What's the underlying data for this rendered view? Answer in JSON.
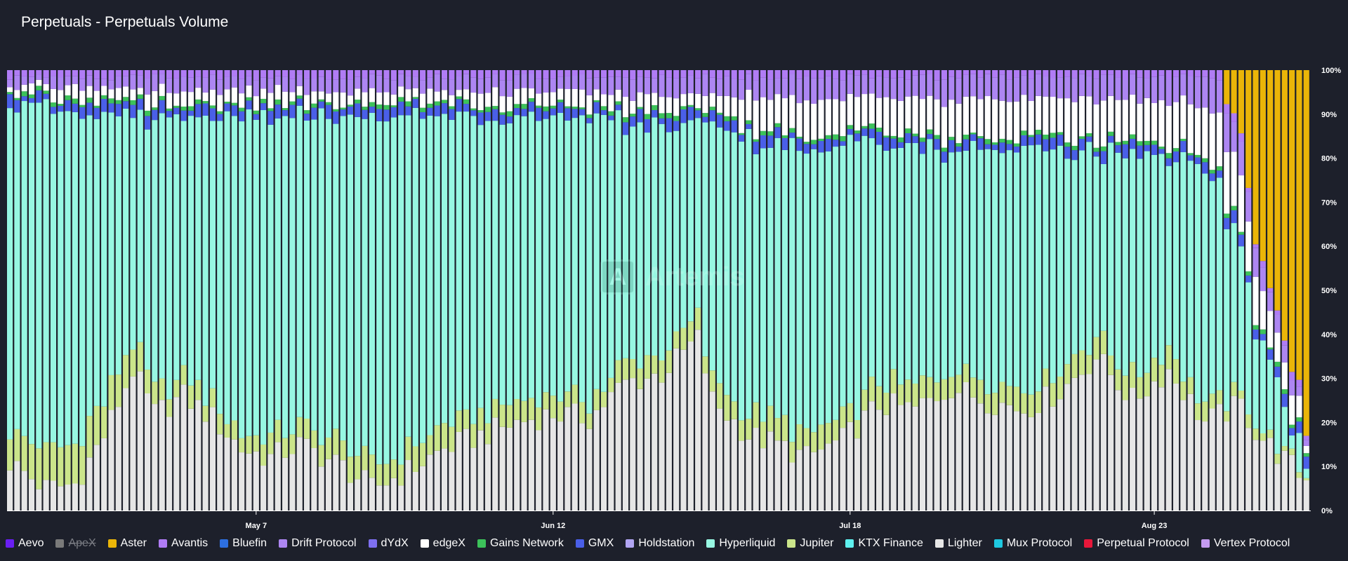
{
  "header": {
    "title": "Perpetuals - Perpetuals Volume"
  },
  "watermark": {
    "text": "Artemis"
  },
  "chart_data": {
    "type": "bar",
    "stacked": true,
    "normalized": true,
    "ylim": [
      0,
      100
    ],
    "y_ticks": [
      "0%",
      "10%",
      "20%",
      "30%",
      "40%",
      "50%",
      "60%",
      "70%",
      "80%",
      "90%",
      "100%"
    ],
    "x_ticks": [
      "May 7",
      "Jun 12",
      "Jul 18",
      "Aug 23"
    ],
    "x_start_date": "2025-04-04",
    "num_bars": 180,
    "grid": false,
    "legend_position": "bottom",
    "series": [
      {
        "name": "Aevo",
        "color": "#6a1ff2",
        "hidden": false
      },
      {
        "name": "ApeX",
        "color": "#7a7a7a",
        "hidden": true
      },
      {
        "name": "Aster",
        "color": "#eab508",
        "hidden": false
      },
      {
        "name": "Avantis",
        "color": "#b07cf5",
        "hidden": false
      },
      {
        "name": "Bluefin",
        "color": "#2d6fe0",
        "hidden": false
      },
      {
        "name": "Drift Protocol",
        "color": "#ad86f2",
        "hidden": false
      },
      {
        "name": "dYdX",
        "color": "#7e6ff0",
        "hidden": false
      },
      {
        "name": "edgeX",
        "color": "#ffffff",
        "hidden": false
      },
      {
        "name": "Gains Network",
        "color": "#3cc25a",
        "hidden": false
      },
      {
        "name": "GMX",
        "color": "#4a5fe8",
        "hidden": false
      },
      {
        "name": "Holdstation",
        "color": "#b1a5f3",
        "hidden": false
      },
      {
        "name": "Hyperliquid",
        "color": "#97f7e2",
        "hidden": false
      },
      {
        "name": "Jupiter",
        "color": "#cbe58a",
        "hidden": false
      },
      {
        "name": "KTX Finance",
        "color": "#5ef0ee",
        "hidden": false
      },
      {
        "name": "Lighter",
        "color": "#e6e6e6",
        "hidden": false
      },
      {
        "name": "Mux Protocol",
        "color": "#1ec8e0",
        "hidden": false
      },
      {
        "name": "Perpetual Protocol",
        "color": "#e8173a",
        "hidden": false
      },
      {
        "name": "Vertex Protocol",
        "color": "#c59bf2",
        "hidden": false
      }
    ],
    "profiles": {
      "lighter_pct": [
        [
          0,
          11
        ],
        [
          5,
          5
        ],
        [
          9,
          6
        ],
        [
          13,
          17
        ],
        [
          17,
          32
        ],
        [
          20,
          22
        ],
        [
          24,
          26
        ],
        [
          28,
          21
        ],
        [
          32,
          14
        ],
        [
          36,
          12
        ],
        [
          40,
          15
        ],
        [
          46,
          10
        ],
        [
          50,
          5
        ],
        [
          55,
          9
        ],
        [
          60,
          14
        ],
        [
          65,
          17
        ],
        [
          70,
          20
        ],
        [
          75,
          22
        ],
        [
          80,
          21
        ],
        [
          85,
          29
        ],
        [
          90,
          31
        ],
        [
          95,
          39
        ],
        [
          97,
          25
        ],
        [
          102,
          17
        ],
        [
          106,
          15
        ],
        [
          110,
          12
        ],
        [
          115,
          16
        ],
        [
          120,
          24
        ],
        [
          125,
          23
        ],
        [
          130,
          28
        ],
        [
          135,
          25
        ],
        [
          140,
          23
        ],
        [
          145,
          27
        ],
        [
          150,
          35
        ],
        [
          155,
          25
        ],
        [
          160,
          32
        ],
        [
          165,
          20
        ],
        [
          170,
          24
        ],
        [
          172,
          18
        ],
        [
          175,
          13
        ],
        [
          179,
          7
        ]
      ],
      "jupiter_pct": [
        [
          0,
          8
        ],
        [
          10,
          9
        ],
        [
          20,
          5
        ],
        [
          30,
          4
        ],
        [
          45,
          5
        ],
        [
          60,
          5
        ],
        [
          80,
          4
        ],
        [
          100,
          5
        ],
        [
          120,
          5
        ],
        [
          140,
          5
        ],
        [
          160,
          5
        ],
        [
          172,
          2
        ],
        [
          179,
          1
        ]
      ],
      "aster_start_index": 168,
      "aster_pct": [
        [
          168,
          9
        ],
        [
          170,
          13
        ],
        [
          172,
          40
        ],
        [
          174,
          48
        ],
        [
          176,
          62
        ],
        [
          178,
          72
        ],
        [
          179,
          84
        ]
      ],
      "gaps_top_pct": [
        [
          0,
          6
        ],
        [
          20,
          8
        ],
        [
          40,
          9
        ],
        [
          60,
          9
        ],
        [
          80,
          12
        ],
        [
          100,
          14
        ],
        [
          110,
          16
        ],
        [
          120,
          15
        ],
        [
          130,
          18
        ],
        [
          140,
          17
        ],
        [
          150,
          17
        ],
        [
          160,
          20
        ],
        [
          164,
          22
        ],
        [
          168,
          28
        ],
        [
          172,
          20
        ],
        [
          179,
          5
        ]
      ]
    }
  },
  "legend": [
    {
      "label": "Aevo"
    },
    {
      "label": "ApeX"
    },
    {
      "label": "Aster"
    },
    {
      "label": "Avantis"
    },
    {
      "label": "Bluefin"
    },
    {
      "label": "Drift Protocol"
    },
    {
      "label": "dYdX"
    },
    {
      "label": "edgeX"
    },
    {
      "label": "Gains Network"
    },
    {
      "label": "GMX"
    },
    {
      "label": "Holdstation"
    },
    {
      "label": "Hyperliquid"
    },
    {
      "label": "Jupiter"
    },
    {
      "label": "KTX Finance"
    },
    {
      "label": "Lighter"
    },
    {
      "label": "Mux Protocol"
    },
    {
      "label": "Perpetual Protocol"
    },
    {
      "label": "Vertex Protocol"
    }
  ]
}
